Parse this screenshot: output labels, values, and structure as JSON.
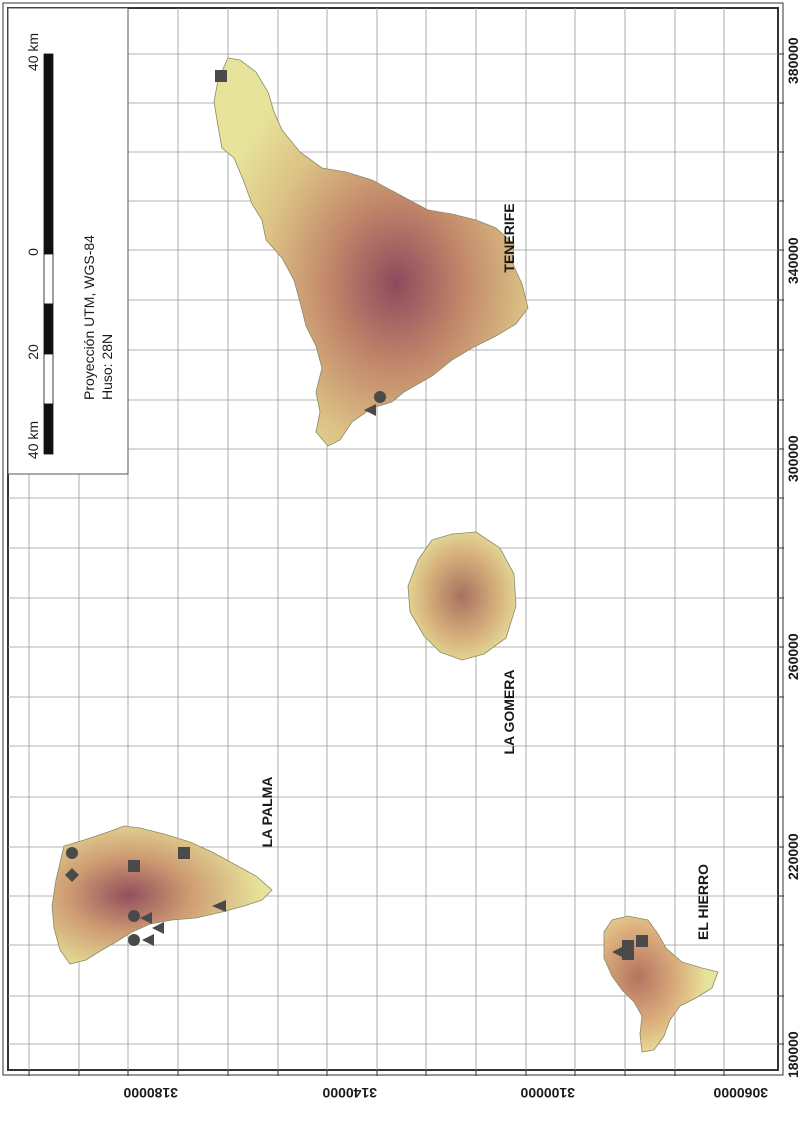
{
  "map": {
    "island_labels": {
      "tenerife": "TENERIFE",
      "la_gomera": "LA GOMERA",
      "la_palma": "LA PALMA",
      "el_hierro": "EL HIERRO"
    },
    "bottom_axis_labels": [
      "180000",
      "220000",
      "260000",
      "300000",
      "340000",
      "380000"
    ],
    "left_axis_labels": [
      "3180000",
      "3140000",
      "3100000",
      "3060000"
    ],
    "legend": {
      "projection_line1": "Proyección UTM, WGS-84",
      "projection_line2": "Huso: 28N",
      "scale_label_left": "40 km",
      "scale_label_20": "20",
      "scale_label_0": "0",
      "scale_label_right": "40 km"
    },
    "colors": {
      "background": "#ffffff",
      "grid": "#9a9a9a",
      "lowland": "#e7e39a",
      "midland": "#d9a36f",
      "highland": "#8e4a5c",
      "marker": "#4a4a4a"
    },
    "marker_types": [
      "square-icon",
      "circle-icon",
      "triangle-icon",
      "diamond-icon"
    ]
  }
}
